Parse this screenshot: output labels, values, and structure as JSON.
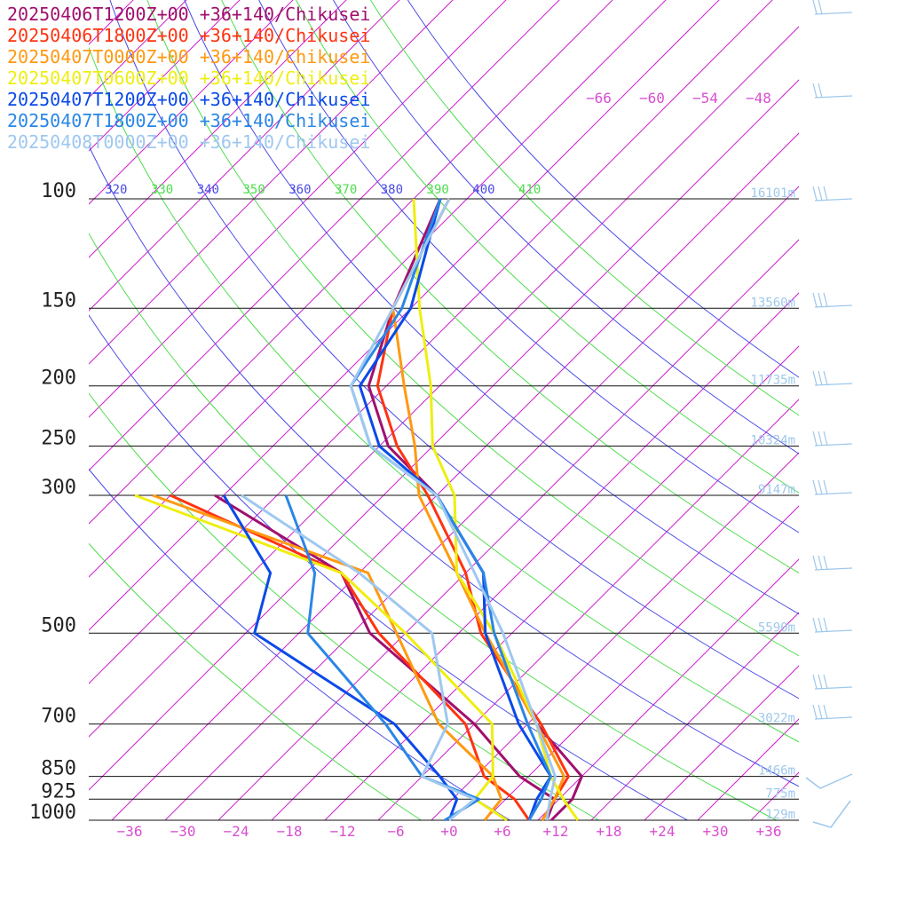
{
  "chart_data": {
    "type": "line",
    "title": "",
    "xlabel": "",
    "ylabel": "",
    "y_scale": "log-pressure",
    "xlim": [
      -40,
      40
    ],
    "ylim": [
      1000,
      100
    ],
    "skew": "45deg",
    "pressure_ticks": [
      {
        "p": 100,
        "label": "100"
      },
      {
        "p": 150,
        "label": "150"
      },
      {
        "p": 200,
        "label": "200"
      },
      {
        "p": 250,
        "label": "250"
      },
      {
        "p": 300,
        "label": "300"
      },
      {
        "p": 500,
        "label": "500"
      },
      {
        "p": 700,
        "label": "700"
      },
      {
        "p": 850,
        "label": "850"
      },
      {
        "p": 925,
        "label": "925"
      },
      {
        "p": 1000,
        "label": "1000"
      }
    ],
    "temperature_ticks": [
      {
        "t": -36,
        "label": "−36"
      },
      {
        "t": -30,
        "label": "−30"
      },
      {
        "t": -24,
        "label": "−24"
      },
      {
        "t": -18,
        "label": "−18"
      },
      {
        "t": -12,
        "label": "−12"
      },
      {
        "t": -6,
        "label": "−6"
      },
      {
        "t": 0,
        "label": "+0"
      },
      {
        "t": 6,
        "label": "+6"
      },
      {
        "t": 12,
        "label": "+12"
      },
      {
        "t": 18,
        "label": "+18"
      },
      {
        "t": 24,
        "label": "+24"
      },
      {
        "t": 30,
        "label": "+30"
      },
      {
        "t": 36,
        "label": "+36"
      }
    ],
    "upper_temperature_labels": [
      {
        "t": -66,
        "label": "−66"
      },
      {
        "t": -60,
        "label": "−60"
      },
      {
        "t": -54,
        "label": "−54"
      },
      {
        "t": -48,
        "label": "−48"
      }
    ],
    "theta_labels": [
      {
        "theta": 310,
        "label": "310",
        "color": "#4ddd4d"
      },
      {
        "theta": 320,
        "label": "320",
        "color": "#4a4ae6"
      },
      {
        "theta": 330,
        "label": "330",
        "color": "#4ddd4d"
      },
      {
        "theta": 340,
        "label": "340",
        "color": "#4a4ae6"
      },
      {
        "theta": 350,
        "label": "350",
        "color": "#4ddd4d"
      },
      {
        "theta": 360,
        "label": "360",
        "color": "#4a4ae6"
      },
      {
        "theta": 370,
        "label": "370",
        "color": "#4ddd4d"
      },
      {
        "theta": 380,
        "label": "380",
        "color": "#4a4ae6"
      },
      {
        "theta": 390,
        "label": "390",
        "color": "#4ddd4d"
      },
      {
        "theta": 400,
        "label": "400",
        "color": "#4a4ae6"
      },
      {
        "theta": 410,
        "label": "410",
        "color": "#4ddd4d"
      }
    ],
    "height_labels": [
      {
        "p": 100,
        "label": "16101m"
      },
      {
        "p": 150,
        "label": "13560m"
      },
      {
        "p": 200,
        "label": "11735m"
      },
      {
        "p": 250,
        "label": "10324m"
      },
      {
        "p": 300,
        "label": "9147m"
      },
      {
        "p": 500,
        "label": "5590m"
      },
      {
        "p": 700,
        "label": "3022m"
      },
      {
        "p": 850,
        "label": "1466m"
      },
      {
        "p": 925,
        "label": "775m"
      },
      {
        "p": 1000,
        "label": "129m"
      }
    ],
    "grid": true,
    "legend": "top-left",
    "series": [
      {
        "name": "20250406T1200Z+00 +36+140/Chikusei",
        "color": "#a0106e",
        "temperature": [
          [
            1000,
            11.5
          ],
          [
            925,
            11.5
          ],
          [
            850,
            10
          ],
          [
            700,
            -1
          ],
          [
            500,
            -17
          ],
          [
            400,
            -24
          ],
          [
            300,
            -38
          ],
          [
            250,
            -49
          ],
          [
            200,
            -58
          ],
          [
            150,
            -64
          ],
          [
            100,
            -71
          ]
        ],
        "dewpoint": [
          [
            1000,
            11
          ],
          [
            925,
            9.5
          ],
          [
            850,
            3
          ],
          [
            700,
            -8
          ],
          [
            500,
            -30
          ],
          [
            400,
            -40
          ],
          [
            300,
            -63
          ]
        ]
      },
      {
        "name": "20250406T1800Z+00 +36+140/Chikusei",
        "color": "#ff3311",
        "temperature": [
          [
            1000,
            10.5
          ],
          [
            925,
            9.5
          ],
          [
            850,
            8.5
          ],
          [
            700,
            -0.5
          ],
          [
            500,
            -17.5
          ],
          [
            400,
            -26
          ],
          [
            300,
            -39
          ],
          [
            250,
            -48
          ],
          [
            200,
            -57
          ],
          [
            150,
            -64
          ],
          [
            100,
            -70
          ]
        ],
        "dewpoint": [
          [
            1000,
            9
          ],
          [
            925,
            5
          ],
          [
            850,
            -1
          ],
          [
            700,
            -9
          ],
          [
            500,
            -29
          ],
          [
            400,
            -40
          ],
          [
            300,
            -68
          ]
        ]
      },
      {
        "name": "20250407T0000Z+00 +36+140/Chikusei",
        "color": "#ff9910",
        "temperature": [
          [
            1000,
            10.5
          ],
          [
            925,
            9.5
          ],
          [
            850,
            8
          ],
          [
            700,
            -1
          ],
          [
            500,
            -17
          ],
          [
            400,
            -27
          ],
          [
            300,
            -40
          ],
          [
            250,
            -46
          ],
          [
            200,
            -54
          ],
          [
            150,
            -64
          ],
          [
            100,
            -70
          ]
        ],
        "dewpoint": [
          [
            1000,
            4
          ],
          [
            925,
            3.5
          ],
          [
            850,
            0
          ],
          [
            700,
            -12
          ],
          [
            500,
            -27
          ],
          [
            400,
            -37
          ],
          [
            300,
            -70
          ]
        ]
      },
      {
        "name": "20250407T0600Z+00 +36+140/Chikusei",
        "color": "#eeee11",
        "temperature": [
          [
            1000,
            14.5
          ],
          [
            925,
            10.5
          ],
          [
            850,
            6.5
          ],
          [
            700,
            -1
          ],
          [
            500,
            -16
          ],
          [
            400,
            -27
          ],
          [
            300,
            -36
          ],
          [
            250,
            -44
          ],
          [
            200,
            -51
          ],
          [
            150,
            -61
          ],
          [
            100,
            -74
          ]
        ],
        "dewpoint": [
          [
            1000,
            6.5
          ],
          [
            925,
            0.5
          ],
          [
            850,
            0
          ],
          [
            700,
            -6
          ],
          [
            500,
            -26
          ],
          [
            400,
            -40
          ],
          [
            300,
            -72
          ]
        ]
      },
      {
        "name": "20250407T1200Z+00 +36+140/Chikusei",
        "color": "#0a4ae8",
        "temperature": [
          [
            1000,
            9
          ],
          [
            925,
            7.5
          ],
          [
            850,
            6.5
          ],
          [
            700,
            -3
          ],
          [
            500,
            -17
          ],
          [
            400,
            -24
          ],
          [
            300,
            -38
          ],
          [
            250,
            -50
          ],
          [
            200,
            -59
          ],
          [
            150,
            -62
          ],
          [
            100,
            -71
          ]
        ],
        "dewpoint": [
          [
            1000,
            0
          ],
          [
            925,
            -1.5
          ],
          [
            850,
            -6
          ],
          [
            700,
            -17
          ],
          [
            500,
            -43
          ],
          [
            400,
            -48
          ],
          [
            300,
            -62
          ]
        ]
      },
      {
        "name": "20250407T1800Z+00 +36+140/Chikusei",
        "color": "#2a86e6",
        "temperature": [
          [
            1000,
            9
          ],
          [
            925,
            8
          ],
          [
            850,
            6.5
          ],
          [
            700,
            -2
          ],
          [
            500,
            -16
          ],
          [
            400,
            -24
          ],
          [
            300,
            -38
          ],
          [
            250,
            -51
          ],
          [
            200,
            -60
          ],
          [
            150,
            -63
          ],
          [
            100,
            -71
          ]
        ],
        "dewpoint": [
          [
            1000,
            -0.5
          ],
          [
            925,
            1
          ],
          [
            850,
            -8
          ],
          [
            700,
            -18
          ],
          [
            500,
            -37
          ],
          [
            400,
            -43
          ],
          [
            300,
            -55
          ]
        ]
      },
      {
        "name": "20250408T0000Z+00 +36+140/Chikusei",
        "color": "#9ec8f0",
        "temperature": [
          [
            1000,
            11
          ],
          [
            925,
            9
          ],
          [
            850,
            7
          ],
          [
            700,
            -1
          ],
          [
            500,
            -15
          ],
          [
            400,
            -25
          ],
          [
            300,
            -38
          ],
          [
            250,
            -51
          ],
          [
            200,
            -60
          ],
          [
            150,
            -64
          ],
          [
            100,
            -70
          ]
        ],
        "dewpoint": [
          [
            1000,
            0
          ],
          [
            925,
            0.5
          ],
          [
            850,
            -8
          ],
          [
            700,
            -11
          ],
          [
            500,
            -23
          ],
          [
            400,
            -38
          ],
          [
            300,
            -60
          ]
        ]
      }
    ]
  }
}
